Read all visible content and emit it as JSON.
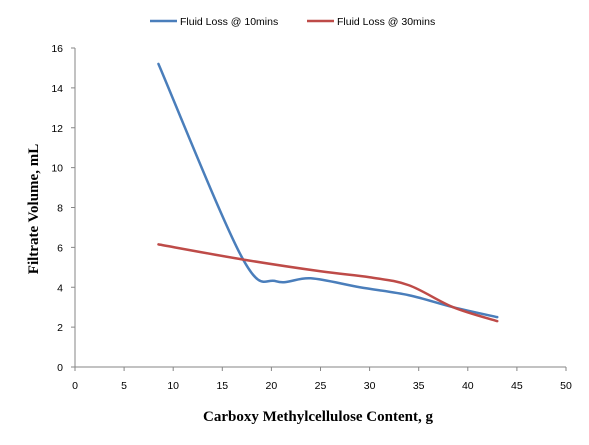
{
  "chart_data": {
    "type": "line",
    "title": "",
    "xlabel": "Carboxy Methylcellulose Content, g",
    "ylabel": "Filtrate Volume, mL",
    "xlim": [
      0,
      50
    ],
    "ylim": [
      0,
      16
    ],
    "x_ticks": [
      0,
      5,
      10,
      15,
      20,
      25,
      30,
      35,
      40,
      45,
      50
    ],
    "y_ticks": [
      0,
      2,
      4,
      6,
      8,
      10,
      12,
      14,
      16
    ],
    "grid": false,
    "legend_position": "top",
    "smooth": true,
    "series": [
      {
        "name": "Fluid Loss @ 10mins",
        "color": "#4A7EBB",
        "x": [
          8.5,
          17,
          20.5,
          24,
          29,
          34,
          38.5,
          43
        ],
        "y": [
          15.2,
          5.5,
          4.3,
          4.45,
          4.0,
          3.6,
          3.0,
          2.5
        ]
      },
      {
        "name": "Fluid Loss @ 30mins",
        "color": "#BE4B48",
        "x": [
          8.5,
          17,
          25,
          30,
          34,
          38.5,
          43
        ],
        "y": [
          6.15,
          5.4,
          4.8,
          4.5,
          4.1,
          3.0,
          2.3
        ]
      }
    ]
  }
}
